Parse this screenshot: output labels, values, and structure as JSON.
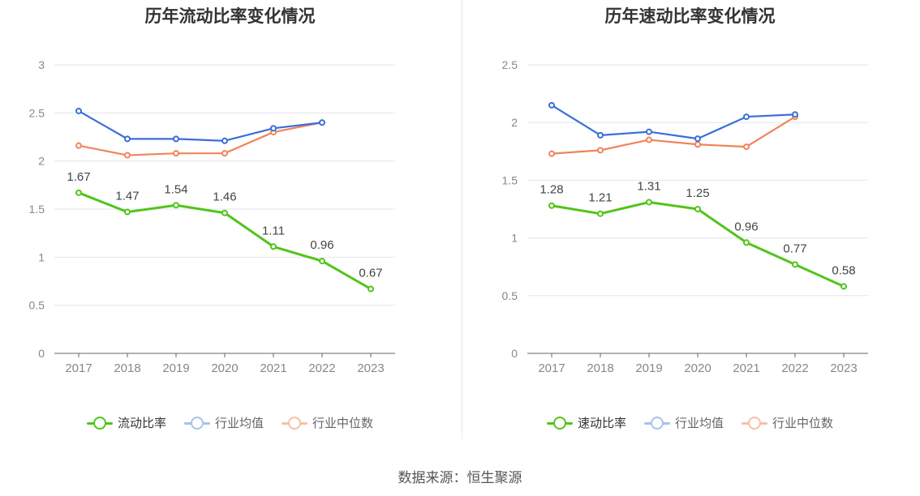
{
  "footer": {
    "source": "数据来源：恒生聚源"
  },
  "chart_data": [
    {
      "type": "line",
      "title": "历年流动比率变化情况",
      "categories": [
        "2017",
        "2018",
        "2019",
        "2020",
        "2021",
        "2022",
        "2023"
      ],
      "ylim": [
        0,
        3
      ],
      "yticks": [
        0,
        0.5,
        1,
        1.5,
        2,
        2.5,
        3
      ],
      "ytick_labels": [
        "0",
        "0.5",
        "1",
        "1.5",
        "2",
        "2.5",
        "3"
      ],
      "grid": true,
      "legend_position": "bottom",
      "series": [
        {
          "name": "流动比率",
          "color": "#52c41a",
          "values": [
            1.67,
            1.47,
            1.54,
            1.46,
            1.11,
            0.96,
            0.67
          ],
          "data_labels": [
            "1.67",
            "1.47",
            "1.54",
            "1.46",
            "1.11",
            "0.96",
            "0.67"
          ]
        },
        {
          "name": "行业均值",
          "color": "#3a6fd8",
          "values": [
            2.52,
            2.23,
            2.23,
            2.21,
            2.34,
            2.4,
            null
          ]
        },
        {
          "name": "行业中位数",
          "color": "#f0845a",
          "values": [
            2.16,
            2.06,
            2.08,
            2.08,
            2.3,
            2.4,
            null
          ]
        }
      ]
    },
    {
      "type": "line",
      "title": "历年速动比率变化情况",
      "categories": [
        "2017",
        "2018",
        "2019",
        "2020",
        "2021",
        "2022",
        "2023"
      ],
      "ylim": [
        0,
        2.5
      ],
      "yticks": [
        0,
        0.5,
        1,
        1.5,
        2,
        2.5
      ],
      "ytick_labels": [
        "0",
        "0.5",
        "1",
        "1.5",
        "2",
        "2.5"
      ],
      "grid": true,
      "legend_position": "bottom",
      "series": [
        {
          "name": "速动比率",
          "color": "#52c41a",
          "values": [
            1.28,
            1.21,
            1.31,
            1.25,
            0.96,
            0.77,
            0.58
          ],
          "data_labels": [
            "1.28",
            "1.21",
            "1.31",
            "1.25",
            "0.96",
            "0.77",
            "0.58"
          ]
        },
        {
          "name": "行业均值",
          "color": "#3a6fd8",
          "values": [
            2.15,
            1.89,
            1.92,
            1.86,
            2.05,
            2.07,
            null
          ]
        },
        {
          "name": "行业中位数",
          "color": "#f0845a",
          "values": [
            1.73,
            1.76,
            1.85,
            1.81,
            1.79,
            2.05,
            null
          ]
        }
      ]
    }
  ]
}
